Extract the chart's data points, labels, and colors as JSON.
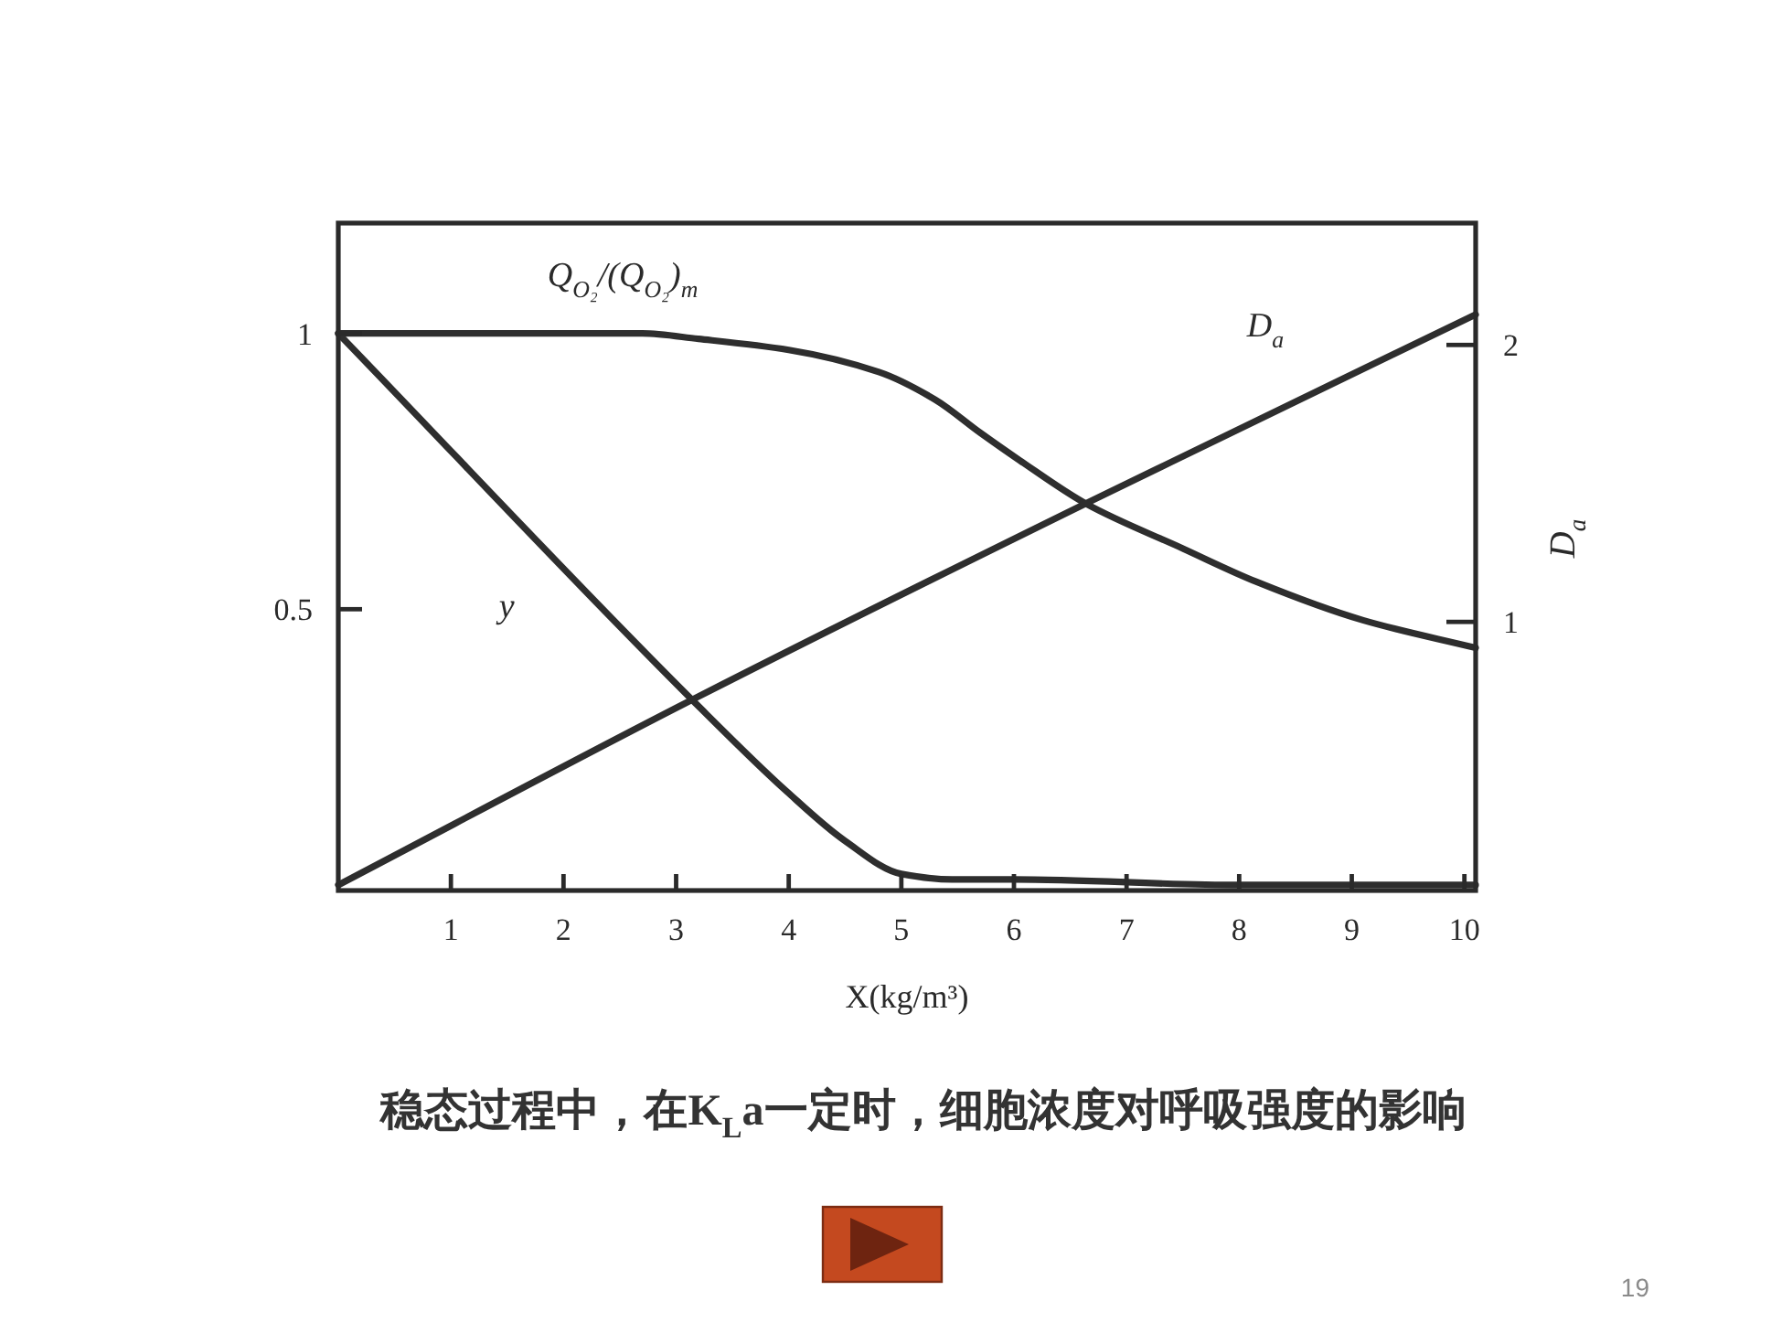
{
  "chart_data": {
    "type": "line",
    "xlabel": "X(kg/m³)",
    "y2label": "D$_{a}$",
    "xlim": [
      0,
      10.1
    ],
    "xticks": [
      1,
      2,
      3,
      4,
      5,
      6,
      7,
      8,
      9,
      10
    ],
    "ylim": [
      -0.01,
      1.2
    ],
    "yticks": [
      0.5,
      1
    ],
    "y2lim": [
      0.03,
      2.44
    ],
    "y2ticks": [
      1,
      2
    ],
    "series": [
      {
        "name": "Q$_{O₂}$/(Q$_{O₂}$)$_{m}$",
        "color": "#2e2e2e",
        "x": [
          0,
          1,
          2,
          2.7,
          3.2,
          4.0,
          4.8,
          5.3,
          5.7,
          6.05,
          6.65,
          7.5,
          8.15,
          9.1,
          10.1
        ],
        "values": [
          1.0,
          1.0,
          1.0,
          1.0,
          0.99,
          0.97,
          0.93,
          0.88,
          0.82,
          0.77,
          0.69,
          0.61,
          0.55,
          0.48,
          0.43
        ]
      },
      {
        "name": "y",
        "color": "#2e2e2e",
        "x": [
          0,
          3.17,
          3.98,
          4.5,
          5.0,
          5.45,
          6,
          8,
          10.1
        ],
        "values": [
          1.0,
          0.33,
          0.17,
          0.08,
          0.02,
          0.01,
          0.01,
          0.0,
          0.0
        ]
      },
      {
        "name": "D$_{a}$",
        "color": "#2e2e2e",
        "axis": "y2",
        "x": [
          0,
          3.1,
          6.65,
          10.1
        ],
        "values": [
          0.05,
          0.71,
          1.43,
          2.11
        ]
      }
    ],
    "annotations": [
      "稳态过程中，在K$_{L}$a一定时，细胞浓度对呼吸强度的影响",
      "19"
    ]
  }
}
